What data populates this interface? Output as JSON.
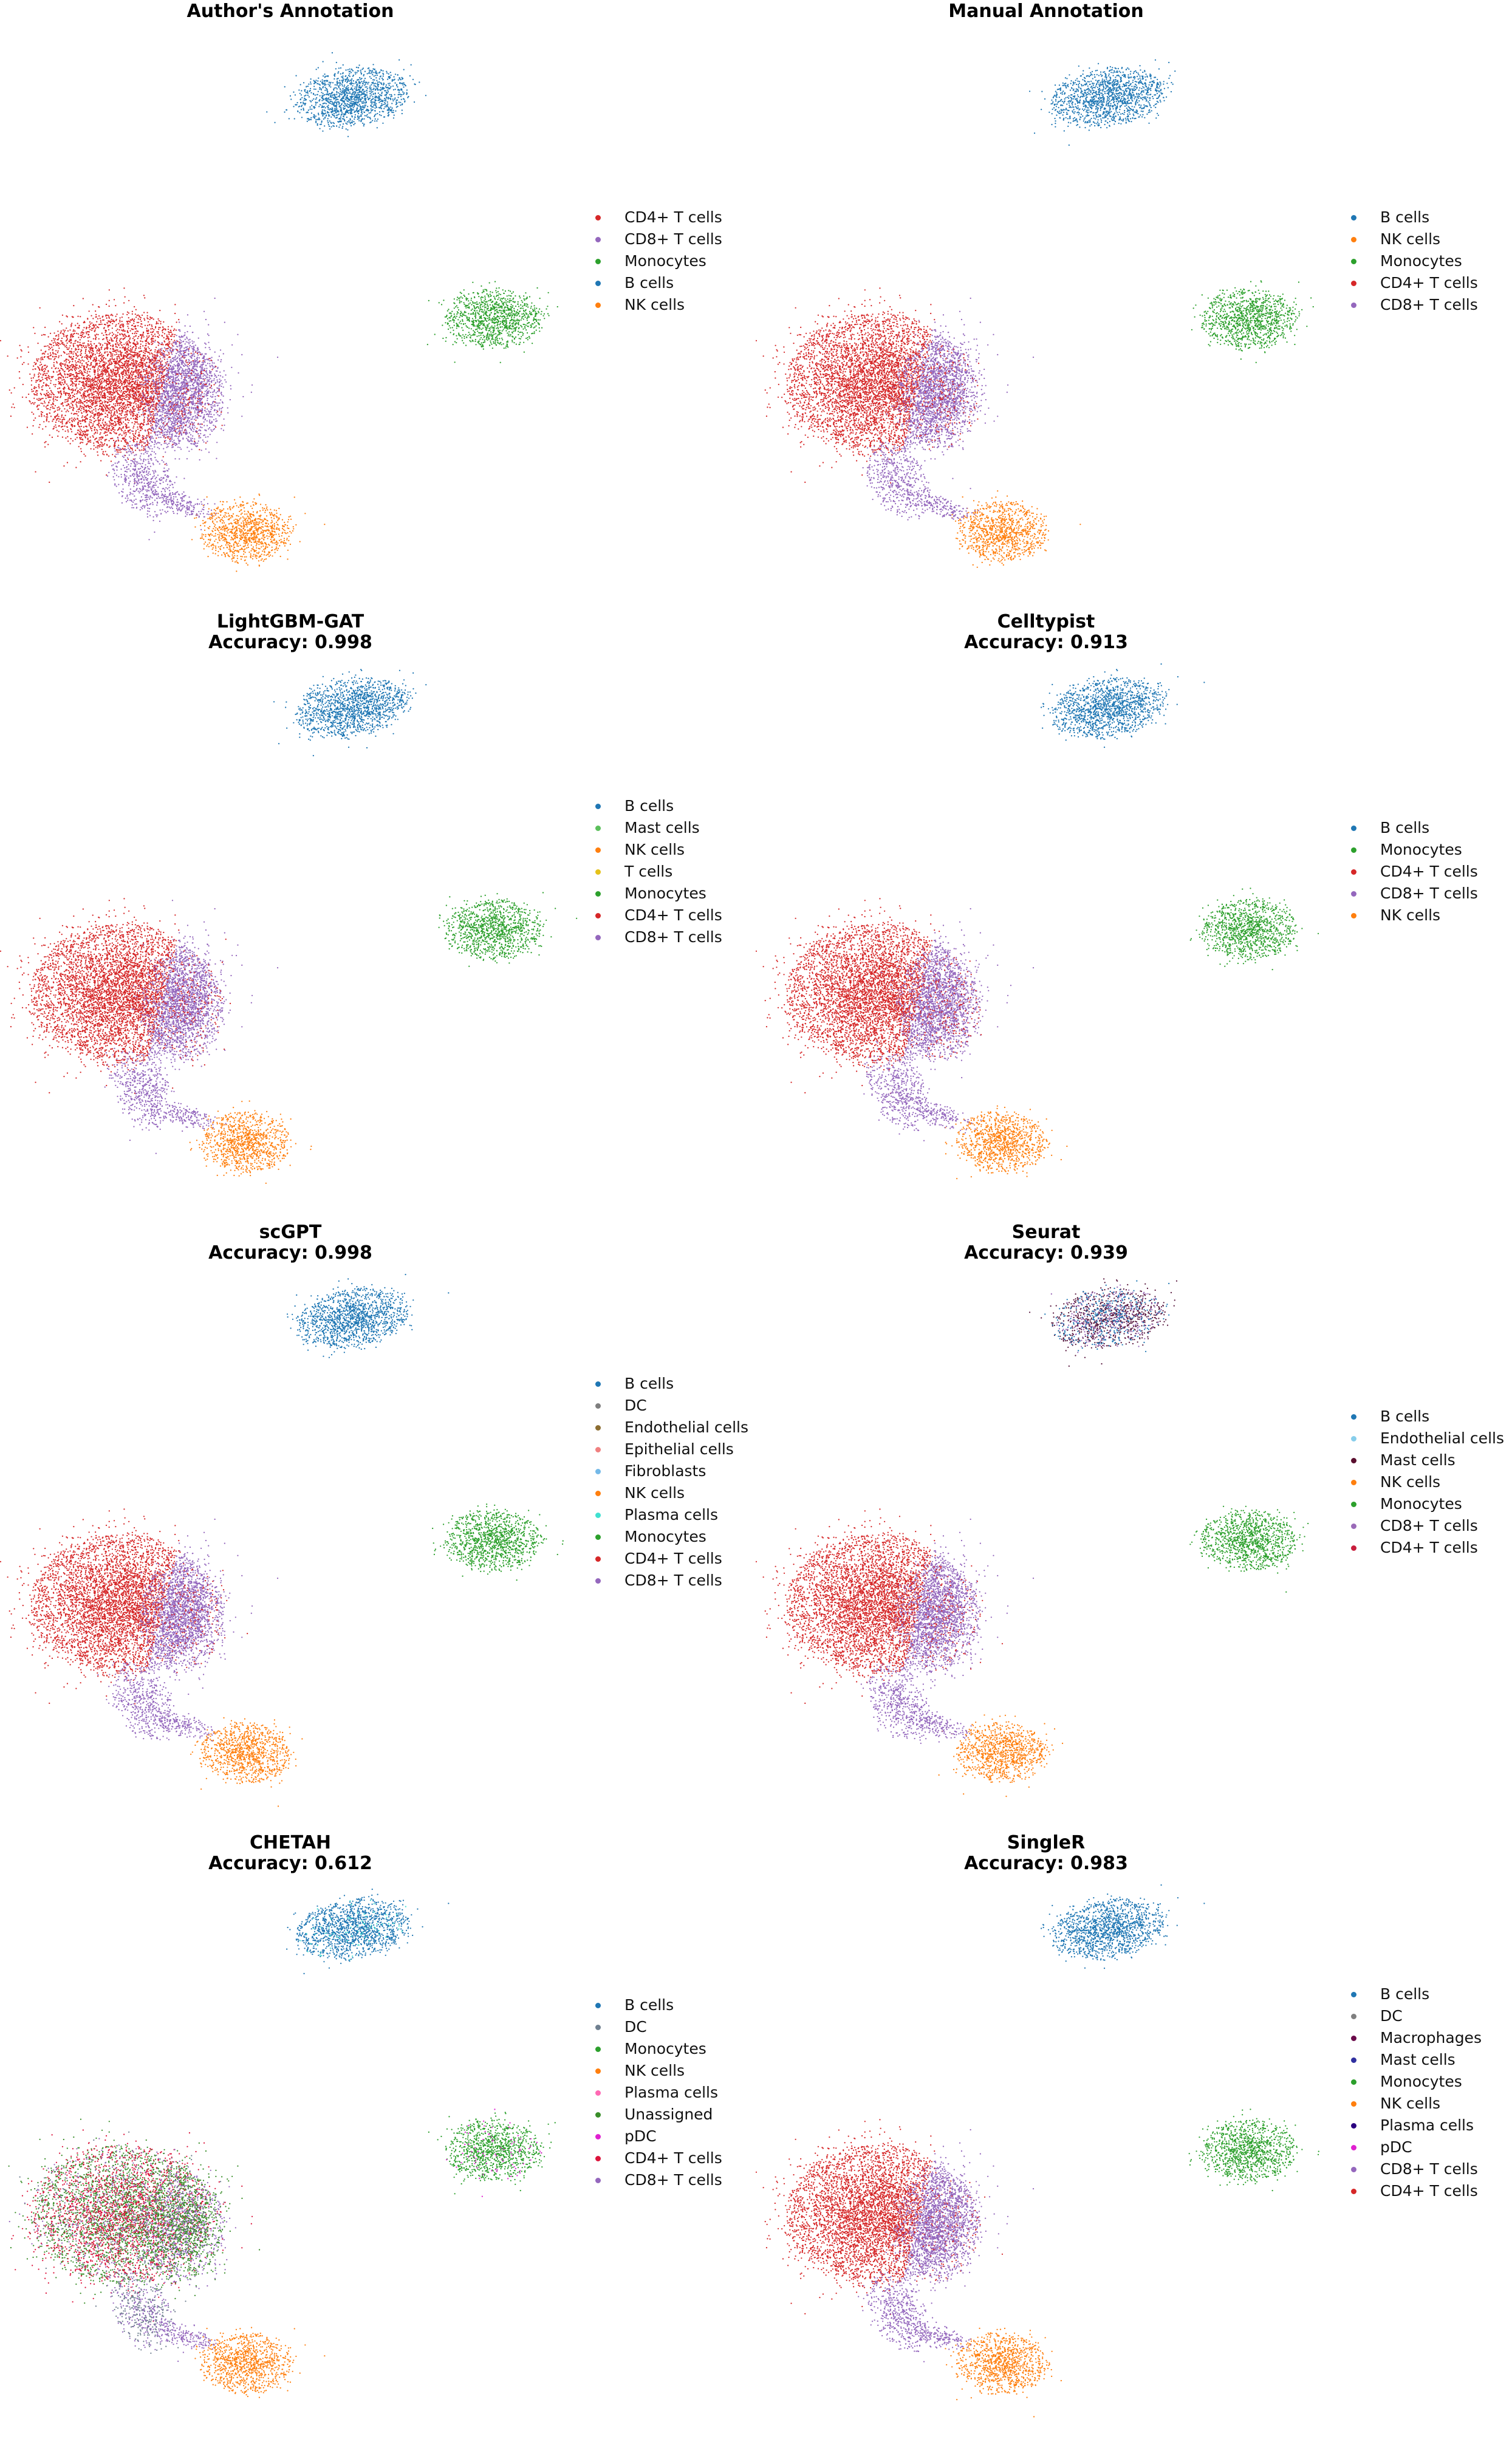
{
  "colors": {
    "B cells": "#1f77b4",
    "NK cells": "#ff7f0e",
    "Monocytes": "#2ca02c",
    "CD4+ T cells": "#d62728",
    "CD8+ T cells": "#9467bd",
    "Mast cells": "#5bbf5b",
    "T cells": "#e5c21a",
    "DC": "#7f7f7f",
    "Endothelial cells": "#8c6d31",
    "Epithelial cells": "#f08080",
    "Fibroblasts": "#74b9e8",
    "Plasma cells": "#40e0d0",
    "Unassigned": "#3a8e2a",
    "pDC": "#e020d0",
    "Macrophages": "#5a1a40"
  },
  "panels": [
    {
      "title": [
        "Author's Annotation"
      ],
      "legend": [
        "CD4+ T cells",
        "CD8+ T cells",
        "Monocytes",
        "B cells",
        "NK cells"
      ]
    },
    {
      "title": [
        "Manual Annotation"
      ],
      "legend": [
        "B cells",
        "NK cells",
        "Monocytes",
        "CD4+ T cells",
        "CD8+ T cells"
      ]
    },
    {
      "title": [
        "LightGBM-GAT",
        "Accuracy: 0.998"
      ],
      "legend": [
        "B cells",
        "Mast cells",
        "NK cells",
        "T cells",
        "Monocytes",
        "CD4+ T cells",
        "CD8+ T cells"
      ]
    },
    {
      "title": [
        "Celltypist",
        "Accuracy: 0.913"
      ],
      "legend": [
        "B cells",
        "Monocytes",
        "CD4+ T cells",
        "CD8+ T cells",
        "NK cells"
      ]
    },
    {
      "title": [
        "scGPT",
        "Accuracy: 0.998"
      ],
      "legend": [
        "B cells",
        "DC",
        "Endothelial cells",
        "Epithelial cells",
        "Fibroblasts",
        "NK cells",
        "Plasma cells",
        "Monocytes",
        "CD4+ T cells",
        "CD8+ T cells"
      ]
    },
    {
      "title": [
        "Seurat",
        "Accuracy: 0.939"
      ],
      "legend": [
        "B cells",
        "Endothelial cells",
        "Mast cells",
        "NK cells",
        "Monocytes",
        "CD8+ T cells",
        "CD4+ T cells"
      ],
      "legend_colors": {
        "Endothelial cells": "#87ceeb",
        "Mast cells": "#5a0f2e",
        "CD4+ T cells": "#c81e3c",
        "CD8+ T cells": "#9a6ab8"
      }
    },
    {
      "title": [
        "CHETAH",
        "Accuracy: 0.612"
      ],
      "legend": [
        "B cells",
        "DC",
        "Monocytes",
        "NK cells",
        "Plasma cells",
        "Unassigned",
        "pDC",
        "CD4+ T cells",
        "CD8+ T cells"
      ],
      "legend_colors": {
        "CD4+ T cells": "#dc143c",
        "DC": "#708090",
        "Plasma cells": "#ff69b4"
      }
    },
    {
      "title": [
        "SingleR",
        "Accuracy: 0.983"
      ],
      "legend": [
        "B cells",
        "DC",
        "Macrophages",
        "Mast cells",
        "Monocytes",
        "NK cells",
        "Plasma cells",
        "pDC",
        "CD8+ T cells",
        "CD4+ T cells"
      ],
      "legend_colors": {
        "Mast cells": "#3030a0",
        "Plasma cells": "#2b0080",
        "Macrophages": "#6a0a4a"
      }
    }
  ]
}
